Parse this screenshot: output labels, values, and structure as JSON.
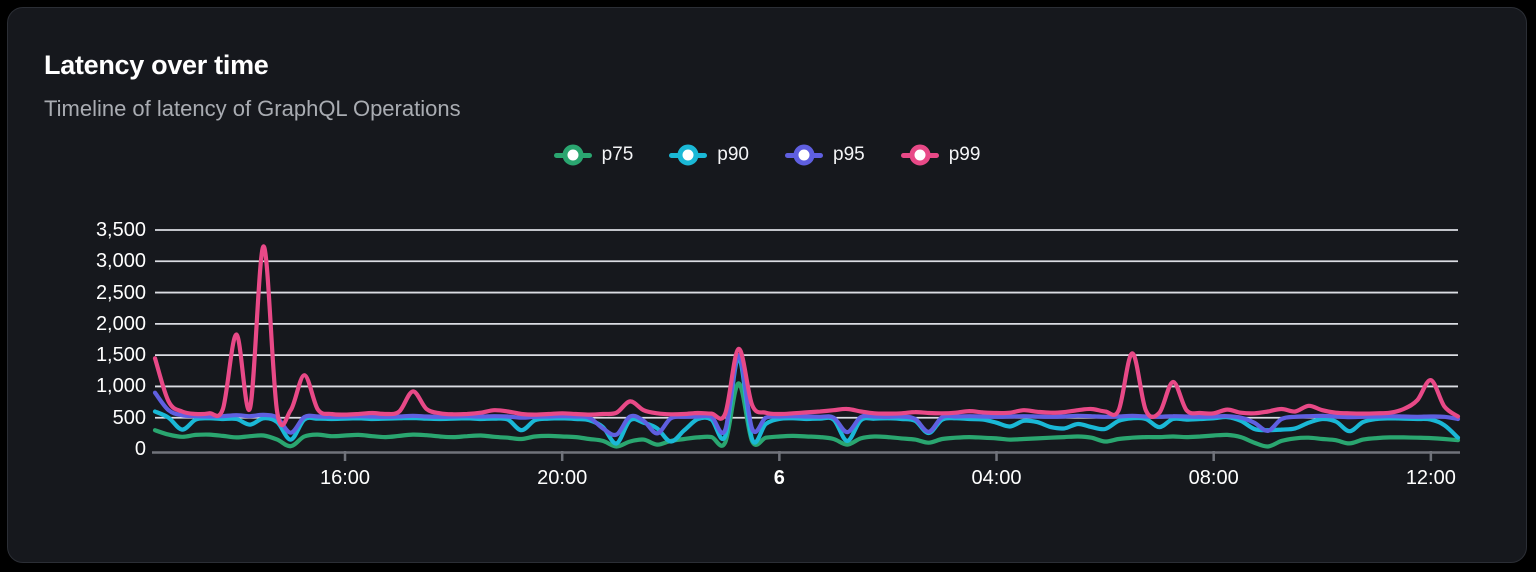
{
  "colors": {
    "page_background": "#000000",
    "panel_background": "#16181D",
    "panel_border": "#2B2E35",
    "grid_line": "#E6E8EE",
    "axis_line": "#70737B",
    "title_text": "#FFFFFF",
    "subtitle_text": "#A9ACB2",
    "axis_label_text": "#FFFFFF"
  },
  "chart_data": {
    "type": "line",
    "title": "Latency over time",
    "subtitle": "Timeline of latency of GraphQL Operations",
    "legend_position": "top-center",
    "grid": true,
    "ylim": [
      0,
      3500
    ],
    "yticks": [
      0,
      500,
      1000,
      1500,
      2000,
      2500,
      3000,
      3500
    ],
    "ytick_labels": [
      "0",
      "500",
      "1,000",
      "1,500",
      "2,000",
      "2,500",
      "3,000",
      "3,500"
    ],
    "x_axis": "time, 15-minute samples from 12:30 (day 5) to 12:30 (day 6)",
    "span_hours": 24,
    "xticks": [
      {
        "label": "16:00",
        "t": 3.5,
        "bold": false
      },
      {
        "label": "20:00",
        "t": 7.5,
        "bold": false
      },
      {
        "label": "6",
        "t": 11.5,
        "bold": true
      },
      {
        "label": "04:00",
        "t": 15.5,
        "bold": false
      },
      {
        "label": "08:00",
        "t": 19.5,
        "bold": false
      },
      {
        "label": "12:00",
        "t": 23.5,
        "bold": false
      }
    ],
    "series": [
      {
        "name": "p75",
        "color": "#2AA670",
        "values": [
          300,
          230,
          195,
          225,
          230,
          210,
          185,
          205,
          215,
          150,
          45,
          200,
          230,
          205,
          215,
          225,
          205,
          190,
          210,
          230,
          220,
          200,
          190,
          205,
          215,
          195,
          180,
          160,
          200,
          210,
          200,
          190,
          160,
          130,
          40,
          120,
          150,
          70,
          130,
          160,
          185,
          190,
          100,
          1050,
          120,
          180,
          200,
          210,
          200,
          190,
          160,
          70,
          170,
          200,
          190,
          170,
          150,
          100,
          160,
          180,
          190,
          180,
          170,
          150,
          160,
          170,
          180,
          190,
          200,
          180,
          120,
          160,
          180,
          190,
          190,
          200,
          190,
          200,
          215,
          225,
          190,
          100,
          40,
          130,
          170,
          180,
          160,
          140,
          90,
          150,
          175,
          185,
          185,
          180,
          175,
          160,
          140
        ]
      },
      {
        "name": "p90",
        "color": "#1AB8D6",
        "values": [
          600,
          500,
          310,
          470,
          490,
          480,
          480,
          390,
          490,
          430,
          150,
          470,
          485,
          480,
          485,
          490,
          480,
          485,
          490,
          495,
          485,
          480,
          485,
          490,
          480,
          485,
          470,
          300,
          460,
          485,
          490,
          480,
          460,
          350,
          90,
          460,
          420,
          330,
          120,
          300,
          480,
          470,
          200,
          1460,
          150,
          400,
          480,
          490,
          480,
          485,
          470,
          130,
          460,
          485,
          490,
          480,
          450,
          255,
          470,
          490,
          480,
          470,
          420,
          360,
          450,
          430,
          350,
          330,
          400,
          350,
          320,
          450,
          490,
          480,
          350,
          480,
          470,
          480,
          490,
          510,
          450,
          320,
          300,
          310,
          330,
          420,
          480,
          440,
          285,
          430,
          480,
          490,
          485,
          480,
          470,
          380,
          180
        ]
      },
      {
        "name": "p95",
        "color": "#5F5FE0",
        "values": [
          900,
          620,
          540,
          525,
          520,
          525,
          540,
          525,
          545,
          500,
          260,
          510,
          520,
          515,
          520,
          525,
          520,
          515,
          520,
          530,
          520,
          515,
          520,
          525,
          520,
          525,
          520,
          500,
          515,
          520,
          525,
          520,
          500,
          330,
          230,
          520,
          450,
          250,
          490,
          515,
          520,
          515,
          300,
          1500,
          320,
          500,
          520,
          525,
          520,
          515,
          500,
          270,
          510,
          520,
          515,
          520,
          480,
          275,
          510,
          520,
          525,
          520,
          515,
          520,
          525,
          520,
          515,
          520,
          530,
          525,
          515,
          520,
          530,
          520,
          515,
          525,
          520,
          515,
          520,
          525,
          500,
          420,
          290,
          480,
          515,
          525,
          530,
          520,
          510,
          515,
          520,
          525,
          520,
          515,
          520,
          515,
          480
        ]
      },
      {
        "name": "p99",
        "color": "#E84987",
        "values": [
          1450,
          760,
          600,
          560,
          570,
          640,
          1830,
          650,
          3240,
          590,
          620,
          1180,
          630,
          560,
          550,
          560,
          575,
          560,
          600,
          920,
          640,
          570,
          555,
          560,
          580,
          620,
          600,
          560,
          550,
          560,
          570,
          560,
          550,
          560,
          580,
          760,
          620,
          570,
          555,
          560,
          575,
          565,
          560,
          1600,
          700,
          580,
          560,
          570,
          585,
          600,
          620,
          640,
          600,
          570,
          565,
          570,
          590,
          575,
          570,
          580,
          605,
          585,
          575,
          580,
          620,
          595,
          580,
          590,
          620,
          640,
          600,
          620,
          1530,
          620,
          580,
          1070,
          620,
          575,
          570,
          630,
          580,
          570,
          600,
          640,
          600,
          690,
          620,
          580,
          570,
          565,
          570,
          580,
          640,
          780,
          1100,
          680,
          520
        ]
      }
    ]
  }
}
